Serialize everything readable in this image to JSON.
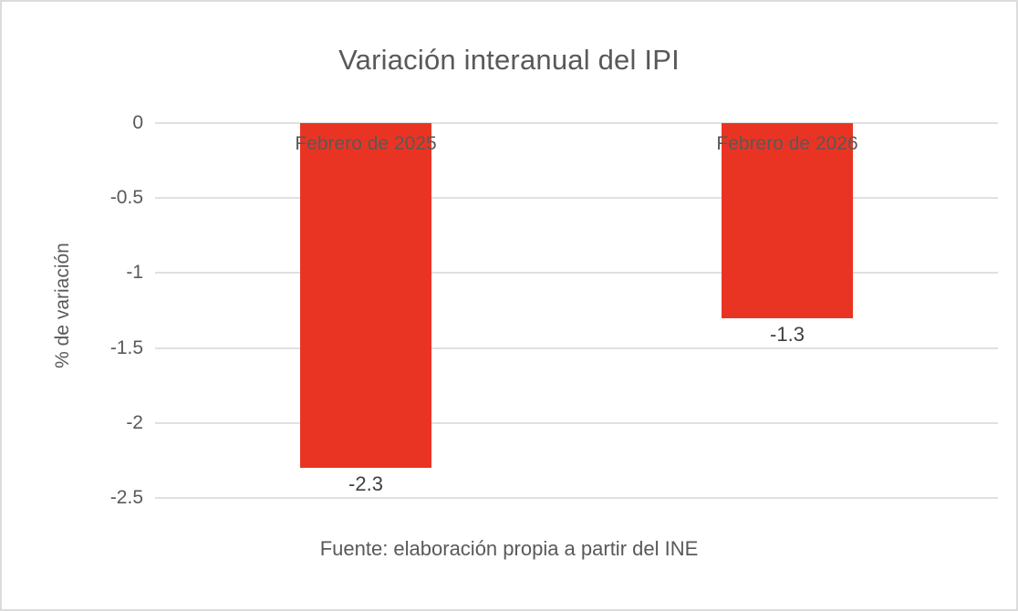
{
  "chart_data": {
    "type": "bar",
    "title": "Variación interanual del IPI",
    "categories": [
      "Febrero de 2025",
      "Febrero de 2026"
    ],
    "values": [
      -2.3,
      -1.3
    ],
    "data_labels": [
      "-2.3",
      "-1.3"
    ],
    "xlabel": "",
    "ylabel": "% de variación",
    "ylim": [
      -2.5,
      0
    ],
    "yticks": [
      0,
      -0.5,
      -1,
      -1.5,
      -2,
      -2.5
    ],
    "ytick_labels": [
      "0",
      "-0.5",
      "-1",
      "-1.5",
      "-2",
      "-2.5"
    ],
    "grid": true,
    "legend": false,
    "footer": "Fuente: elaboración propia a partir del INE"
  },
  "colors": {
    "bar": "#ea3423",
    "title_text": "#595959",
    "axis_text": "#595959",
    "category_label_text": "#595959",
    "data_label_text": "#3f3f3f",
    "gridline": "#e0e0e0",
    "canvas_border": "#dcdcdc",
    "background": "#ffffff"
  }
}
